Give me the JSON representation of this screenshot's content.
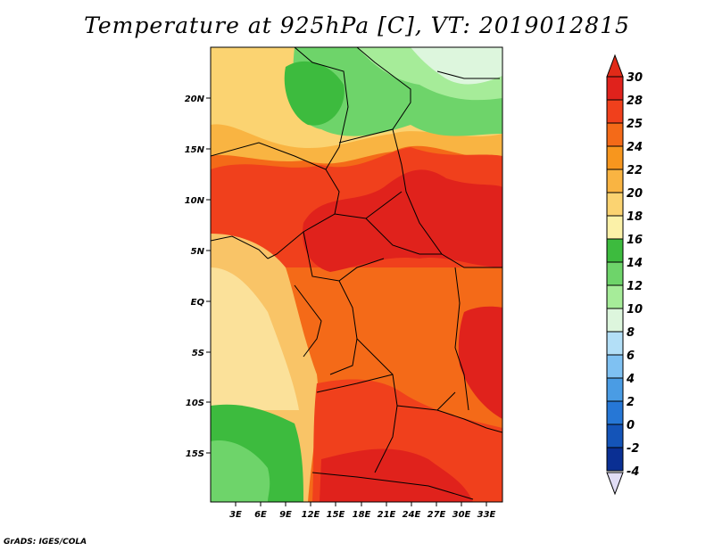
{
  "title": "Temperature at 925hPa [C], VT: 2019012815",
  "credit": "GrADS: IGES/COLA",
  "lat_labels": [
    "20N",
    "15N",
    "10N",
    "5N",
    "EQ",
    "5S",
    "10S",
    "15S"
  ],
  "lon_labels": [
    "3E",
    "6E",
    "9E",
    "12E",
    "15E",
    "18E",
    "21E",
    "24E",
    "27E",
    "30E",
    "33E"
  ],
  "colorbar": {
    "levels": [
      "30",
      "28",
      "25",
      "24",
      "22",
      "20",
      "18",
      "16",
      "14",
      "12",
      "10",
      "8",
      "6",
      "4",
      "2",
      "0",
      "-2",
      "-4"
    ],
    "colors": [
      "#e0221c",
      "#f0401c",
      "#f46a18",
      "#f7961e",
      "#f9b442",
      "#fbd371",
      "#fbf1a8",
      "#3dbb3e",
      "#6ed46a",
      "#a6ec99",
      "#ddf6dd",
      "#b3dff7",
      "#7fc1f2",
      "#4a9ce4",
      "#2677d6",
      "#1454b8",
      "#0a2f93",
      "#050a5c"
    ],
    "top_cap_color": "#e02a18",
    "bottom_cap_color": "#e0dcf4"
  },
  "colors": {
    "tropics_hot": "#e0221c",
    "hot": "#f0401c",
    "warm": "#f46a18",
    "ocean_warm": "#f9c467",
    "ocean_cool": "#fbe19a",
    "green": "#3dbb3e",
    "light_green": "#6ed46a",
    "pale_green": "#a6ec99",
    "border": "#000000"
  }
}
